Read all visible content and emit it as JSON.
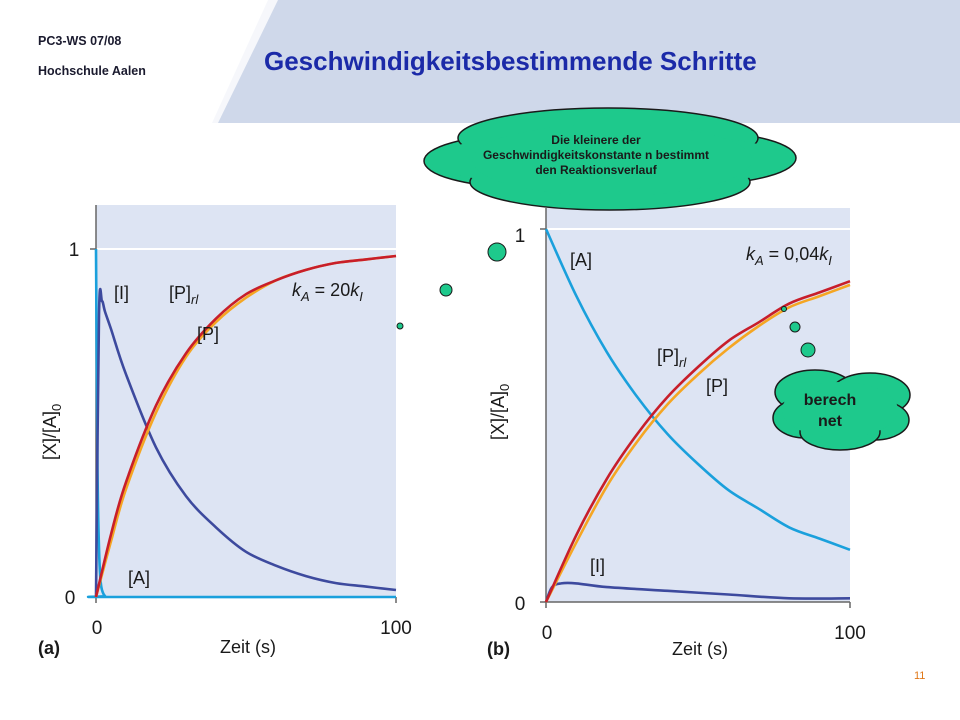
{
  "header": {
    "course": "PC3-WS 07/08",
    "school": "Hochschule Aalen",
    "title": "Geschwindigkeitsbestimmende Schritte"
  },
  "callouts": {
    "cloud_text": "Die kleinere der Geschwindigkeitskonstante n bestimmt den Reaktionsverlauf",
    "berechnet_text": "berech net"
  },
  "page_number": "11",
  "colors": {
    "plot_bg": "#dde4f3",
    "A": "#1aa0dc",
    "I": "#3d4a9e",
    "P_rl": "#c81e2a",
    "P": "#f5a623",
    "cloud": "#1ec98c"
  },
  "chart_data": [
    {
      "type": "line",
      "panel_label": "(a)",
      "xlabel": "Zeit (s)",
      "ylabel": "[X]/[A]0",
      "xlim": [
        0,
        100
      ],
      "ylim": [
        0,
        1
      ],
      "xticks": [
        "0",
        "100"
      ],
      "yticks": [
        "0",
        "1"
      ],
      "annotation": "kA = 20kI",
      "series": [
        {
          "name": "[A]",
          "color": "#1aa0dc",
          "x": [
            0,
            0.5,
            1,
            1.5,
            2,
            3,
            5,
            100
          ],
          "y": [
            1,
            0.37,
            0.14,
            0.05,
            0.02,
            0.003,
            0,
            0
          ]
        },
        {
          "name": "[I]",
          "color": "#3d4a9e",
          "x": [
            0,
            1,
            2,
            3,
            5,
            10,
            20,
            30,
            40,
            50,
            60,
            70,
            80,
            90,
            100
          ],
          "y": [
            0,
            0.81,
            0.85,
            0.82,
            0.77,
            0.64,
            0.43,
            0.29,
            0.2,
            0.13,
            0.09,
            0.06,
            0.04,
            0.03,
            0.02
          ]
        },
        {
          "name": "[P]rl",
          "color": "#c81e2a",
          "x": [
            0,
            5,
            10,
            20,
            30,
            40,
            50,
            60,
            70,
            80,
            90,
            100
          ],
          "y": [
            0,
            0.18,
            0.33,
            0.55,
            0.7,
            0.8,
            0.87,
            0.91,
            0.94,
            0.96,
            0.97,
            0.98
          ]
        },
        {
          "name": "[P]",
          "color": "#f5a623",
          "x": [
            0,
            5,
            10,
            20,
            30,
            40,
            50,
            60,
            70,
            80,
            90,
            100
          ],
          "y": [
            0,
            0.16,
            0.31,
            0.53,
            0.69,
            0.79,
            0.86,
            0.91,
            0.94,
            0.96,
            0.97,
            0.98
          ]
        }
      ]
    },
    {
      "type": "line",
      "panel_label": "(b)",
      "xlabel": "Zeit (s)",
      "ylabel": "[X]/[A]0",
      "xlim": [
        0,
        100
      ],
      "ylim": [
        0,
        1
      ],
      "xticks": [
        "0",
        "100"
      ],
      "yticks": [
        "0",
        "1"
      ],
      "annotation": "kA = 0,04kI",
      "series": [
        {
          "name": "[A]",
          "color": "#1aa0dc",
          "x": [
            0,
            10,
            20,
            30,
            40,
            50,
            60,
            70,
            80,
            90,
            100
          ],
          "y": [
            1,
            0.82,
            0.67,
            0.55,
            0.45,
            0.37,
            0.3,
            0.25,
            0.2,
            0.17,
            0.14
          ]
        },
        {
          "name": "[I]",
          "color": "#3d4a9e",
          "x": [
            0,
            2,
            5,
            10,
            20,
            40,
            60,
            80,
            100
          ],
          "y": [
            0,
            0.04,
            0.05,
            0.05,
            0.04,
            0.03,
            0.02,
            0.01,
            0.01
          ]
        },
        {
          "name": "[P]rl",
          "color": "#c81e2a",
          "x": [
            0,
            10,
            20,
            30,
            40,
            50,
            60,
            70,
            80,
            90,
            100
          ],
          "y": [
            0,
            0.18,
            0.33,
            0.45,
            0.55,
            0.63,
            0.7,
            0.75,
            0.8,
            0.83,
            0.86
          ]
        },
        {
          "name": "[P]",
          "color": "#f5a623",
          "x": [
            0,
            10,
            20,
            30,
            40,
            50,
            60,
            70,
            80,
            90,
            100
          ],
          "y": [
            0,
            0.16,
            0.31,
            0.43,
            0.53,
            0.61,
            0.68,
            0.74,
            0.79,
            0.82,
            0.85
          ]
        }
      ]
    }
  ]
}
